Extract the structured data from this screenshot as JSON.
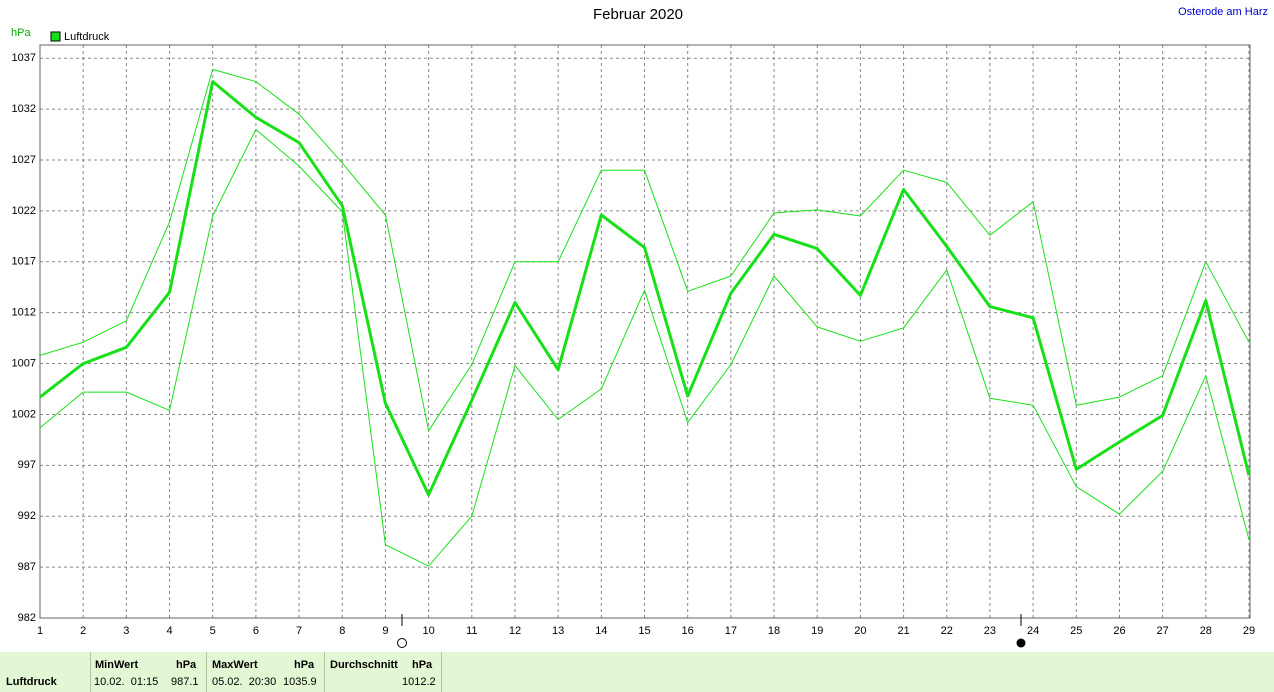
{
  "chart_data": {
    "type": "line",
    "title": "Februar 2020",
    "station": "Osterode am Harz",
    "y_unit": "hPa",
    "x": [
      1,
      2,
      3,
      4,
      5,
      6,
      7,
      8,
      9,
      10,
      11,
      12,
      13,
      14,
      15,
      16,
      17,
      18,
      19,
      20,
      21,
      22,
      23,
      24,
      25,
      26,
      27,
      28,
      29
    ],
    "xlim": [
      1,
      29
    ],
    "xticks": [
      1,
      2,
      3,
      4,
      5,
      6,
      7,
      8,
      9,
      10,
      11,
      12,
      13,
      14,
      15,
      16,
      17,
      18,
      19,
      20,
      21,
      22,
      23,
      24,
      25,
      26,
      27,
      28,
      29
    ],
    "ylim": [
      982,
      1038.3
    ],
    "yticks": [
      982,
      987,
      992,
      997,
      1002,
      1007,
      1012,
      1017,
      1022,
      1027,
      1032,
      1037
    ],
    "grid": true,
    "series": [
      {
        "name": "Luftdruck",
        "color": "#18e018",
        "width": 3,
        "values": [
          1003.7,
          1007.0,
          1008.6,
          1014.0,
          1034.7,
          1031.2,
          1028.7,
          1022.5,
          1003.1,
          994.1,
          1003.4,
          1013.0,
          1006.4,
          1021.6,
          1018.4,
          1003.8,
          1013.9,
          1019.7,
          1018.3,
          1013.7,
          1024.1,
          1018.5,
          1012.6,
          1011.5,
          996.6,
          999.3,
          1001.9,
          1013.2,
          996.0
        ]
      },
      {
        "color": "#18e018",
        "width": 1,
        "values": [
          1007.8,
          1009.1,
          1011.2,
          1020.9,
          1035.9,
          1034.7,
          1031.5,
          1026.7,
          1021.6,
          1000.4,
          1006.9,
          1017.0,
          1017.0,
          1026.0,
          1026.0,
          1014.1,
          1015.6,
          1021.8,
          1022.1,
          1021.5,
          1026.0,
          1024.8,
          1019.6,
          1022.9,
          1002.9,
          1003.7,
          1005.8,
          1017.0,
          1009.1
        ]
      },
      {
        "color": "#18e018",
        "width": 1,
        "values": [
          1000.7,
          1004.2,
          1004.2,
          1002.4,
          1021.5,
          1030.0,
          1026.4,
          1021.9,
          989.2,
          987.1,
          992.0,
          1006.8,
          1001.5,
          1004.5,
          1014.2,
          1001.2,
          1006.9,
          1015.6,
          1010.6,
          1009.2,
          1010.5,
          1016.2,
          1003.6,
          1002.9,
          994.9,
          992.2,
          996.4,
          1005.8,
          989.7
        ]
      }
    ]
  },
  "summary": {
    "row_label": "Luftdruck",
    "columns": [
      {
        "header": "MinWert",
        "unit": "hPa",
        "time": "10.02.  01:15",
        "value": "987.1"
      },
      {
        "header": "MaxWert",
        "unit": "hPa",
        "time": "05.02.  20:30",
        "value": "1035.9"
      },
      {
        "header": "Durchschnitt",
        "unit": "hPa",
        "value": "1012.2"
      }
    ]
  }
}
